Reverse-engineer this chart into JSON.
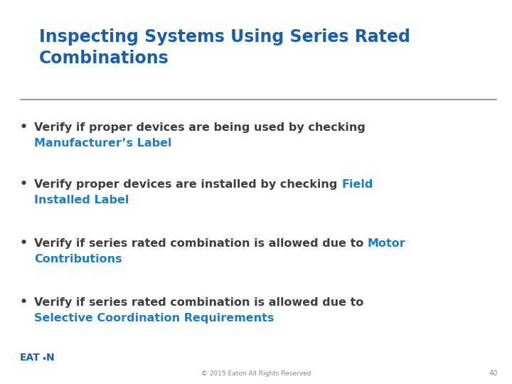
{
  "title_line1": "Inspecting Systems Using Series Rated",
  "title_line2": "Combinations",
  "title_color": "#1B5FAB",
  "background_color": "#FFFFFF",
  "separator_color": "#888888",
  "bullet_color": "#3D3D3D",
  "highlight_color": "#1B7EC4",
  "footer_text": "© 2015 Eaton All Rights Reserved",
  "footer_page": "40",
  "footer_color": "#888888",
  "title_fontsize": 17,
  "body_fontsize": 11.5
}
